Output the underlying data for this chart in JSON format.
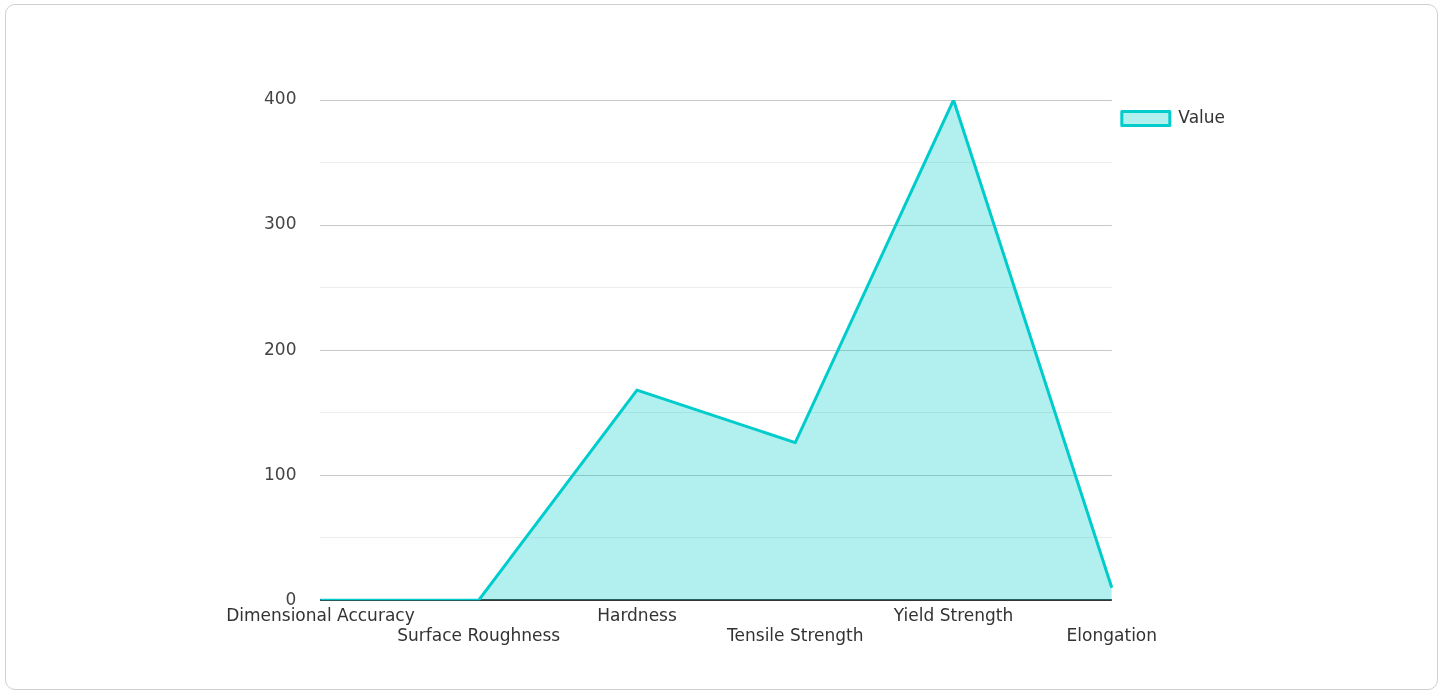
{
  "chart_data": {
    "type": "area",
    "categories": [
      "Dimensional Accuracy",
      "Surface Roughness",
      "Hardness",
      "Tensile Strength",
      "Yield Strength",
      "Elongation"
    ],
    "series": [
      {
        "name": "Value",
        "color": "#00cccc",
        "values": [
          0,
          0,
          168,
          126,
          400,
          10
        ]
      }
    ],
    "ylim": [
      0,
      400
    ],
    "yticks": [
      0,
      {
        "value": 50,
        "label": null
      },
      100,
      {
        "value": 150,
        "label": null
      },
      200,
      {
        "value": 250,
        "label": null
      },
      300,
      {
        "value": 350,
        "label": null
      },
      400
    ],
    "grid": "y",
    "legend": "top right",
    "marker": "none",
    "line_style": "solid"
  }
}
